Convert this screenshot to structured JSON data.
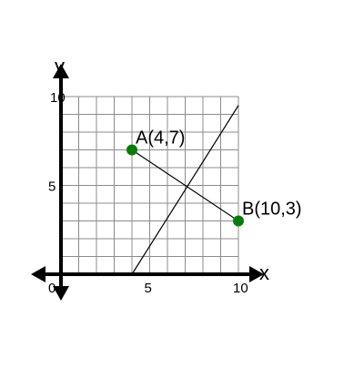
{
  "chart_data": {
    "type": "scatter",
    "xlabel": "x",
    "ylabel": "y",
    "xlim": [
      0,
      10
    ],
    "ylim": [
      0,
      10
    ],
    "grid": true,
    "grid_step": 1,
    "x_ticks": [
      {
        "value": 0,
        "label": "0"
      },
      {
        "value": 5,
        "label": "5"
      },
      {
        "value": 10,
        "label": "10"
      }
    ],
    "y_ticks": [
      {
        "value": 5,
        "label": "5"
      },
      {
        "value": 10,
        "label": "10"
      }
    ],
    "points": [
      {
        "label": "A(4,7)",
        "x": 4,
        "y": 7
      },
      {
        "label": "B(10,3)",
        "x": 10,
        "y": 3
      }
    ],
    "lines": [
      {
        "from": [
          4,
          7
        ],
        "to": [
          10,
          3
        ]
      },
      {
        "from": [
          4,
          0
        ],
        "to": [
          10,
          9.5
        ]
      }
    ],
    "colors": {
      "point": "#0a7a0a",
      "grid": "#8c8c8c",
      "axis": "#000000",
      "line": "#000000"
    }
  }
}
